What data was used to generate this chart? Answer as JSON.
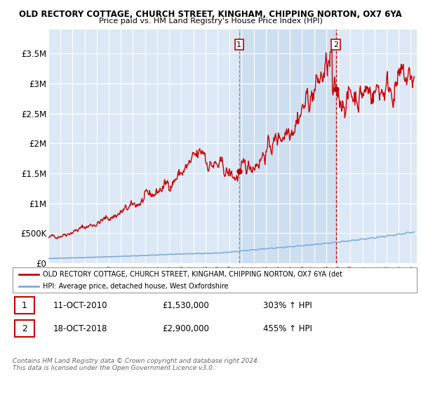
{
  "title_line1": "OLD RECTORY COTTAGE, CHURCH STREET, KINGHAM, CHIPPING NORTON, OX7 6YA",
  "title_line2": "Price paid vs. HM Land Registry's House Price Index (HPI)",
  "ylabel_ticks": [
    "£0",
    "£500K",
    "£1M",
    "£1.5M",
    "£2M",
    "£2.5M",
    "£3M",
    "£3.5M"
  ],
  "ytick_values": [
    0,
    500000,
    1000000,
    1500000,
    2000000,
    2500000,
    3000000,
    3500000
  ],
  "ylim": [
    0,
    3900000
  ],
  "xlim_start": 1995.0,
  "xlim_end": 2025.5,
  "background_color": "#ffffff",
  "plot_bg_color": "#dce8f5",
  "grid_color": "#ffffff",
  "hpi_color": "#7faadd",
  "price_color": "#cc0000",
  "shade_color": "#c8daf0",
  "marker1_x": 2010.79,
  "marker1_y": 1530000,
  "marker2_x": 2018.79,
  "marker2_y": 2900000,
  "legend_red_label": "OLD RECTORY COTTAGE, CHURCH STREET, KINGHAM, CHIPPING NORTON, OX7 6YA (det",
  "legend_blue_label": "HPI: Average price, detached house, West Oxfordshire",
  "annot1_num": "1",
  "annot1_date": "11-OCT-2010",
  "annot1_price": "£1,530,000",
  "annot1_hpi": "303% ↑ HPI",
  "annot2_num": "2",
  "annot2_date": "18-OCT-2018",
  "annot2_price": "£2,900,000",
  "annot2_hpi": "455% ↑ HPI",
  "footer": "Contains HM Land Registry data © Crown copyright and database right 2024.\nThis data is licensed under the Open Government Licence v3.0."
}
